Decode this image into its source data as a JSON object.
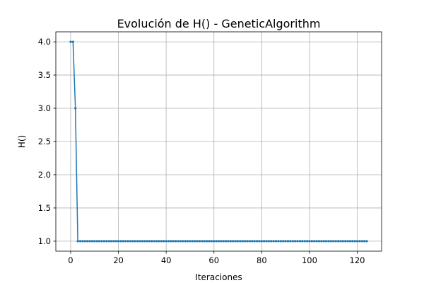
{
  "chart_data": {
    "type": "line",
    "title": "Evolución de H() - GeneticAlgorithm",
    "xlabel": "Iteraciones",
    "ylabel": "H()",
    "xlim": [
      -6.2,
      130.2
    ],
    "ylim": [
      0.85,
      4.15
    ],
    "xticks": [
      0,
      20,
      40,
      60,
      80,
      100,
      120
    ],
    "yticks": [
      1.0,
      1.5,
      2.0,
      2.5,
      3.0,
      3.5,
      4.0
    ],
    "xtick_labels": [
      "0",
      "20",
      "40",
      "60",
      "80",
      "100",
      "120"
    ],
    "ytick_labels": [
      "1.0",
      "1.5",
      "2.0",
      "2.5",
      "3.0",
      "3.5",
      "4.0"
    ],
    "grid": true,
    "line_color": "#1f77b4",
    "marker": "point",
    "series": [
      {
        "x_start": 0,
        "x_end": 124,
        "y_head": [
          4,
          4,
          3
        ],
        "y_rest": 1
      }
    ]
  }
}
